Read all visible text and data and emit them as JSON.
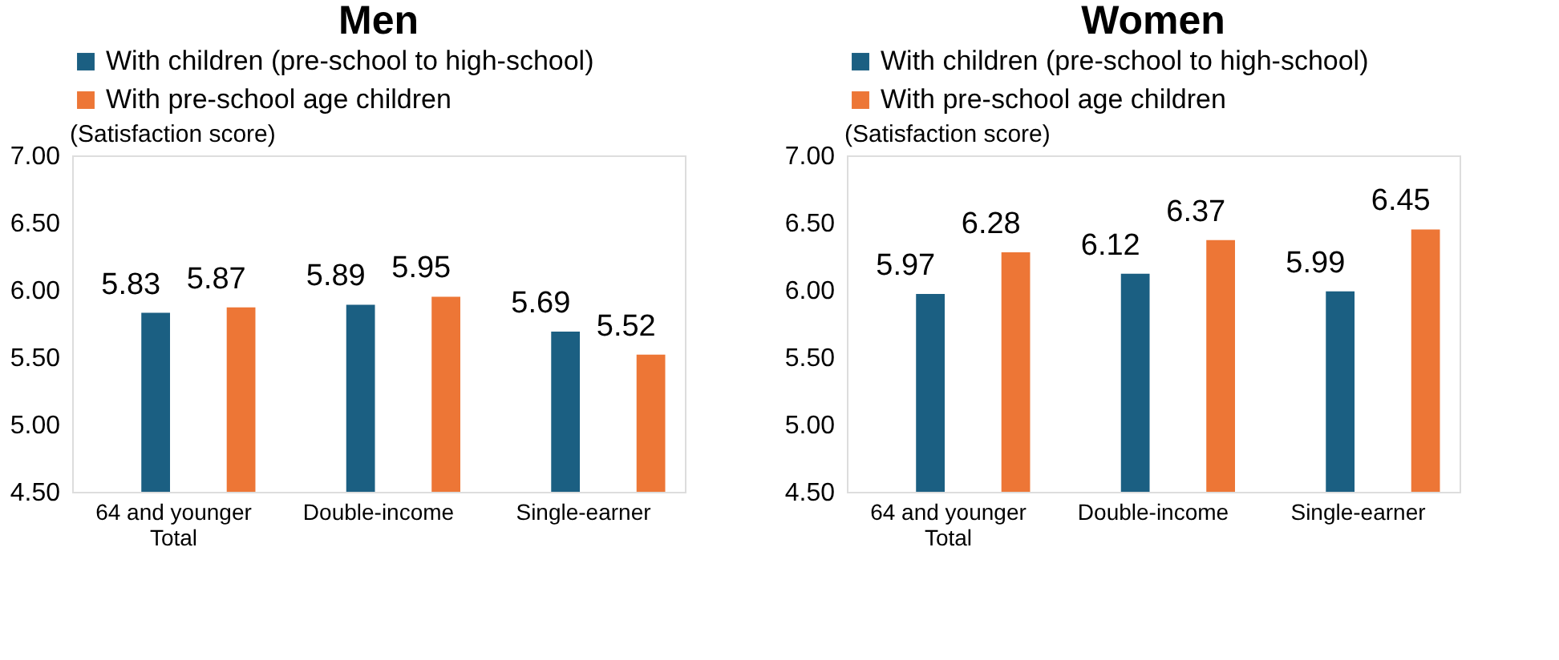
{
  "chart_data": [
    {
      "type": "bar",
      "title": "Men",
      "ylabel": "(Satisfaction score)",
      "categories": [
        "64 and younger\nTotal",
        "Double-income",
        "Single-earner"
      ],
      "series": [
        {
          "name": "With children (pre-school to high-school)",
          "color": "#1b5f82",
          "values": [
            5.83,
            5.89,
            5.69
          ]
        },
        {
          "name": "With pre-school age children",
          "color": "#ed7636",
          "values": [
            5.87,
            5.95,
            5.52
          ]
        }
      ],
      "ylim": [
        4.5,
        7.0
      ],
      "yticks": [
        {
          "value": 4.5,
          "label": "4.50"
        },
        {
          "value": 5.0,
          "label": "5.00"
        },
        {
          "value": 5.5,
          "label": "5.50"
        },
        {
          "value": 6.0,
          "label": "6.00"
        },
        {
          "value": 6.5,
          "label": "6.50"
        },
        {
          "value": 7.0,
          "label": "7.00"
        }
      ],
      "data_labels": true,
      "legend": "top",
      "grid": false
    },
    {
      "type": "bar",
      "title": "Women",
      "ylabel": "(Satisfaction score)",
      "categories": [
        "64 and younger\nTotal",
        "Double-income",
        "Single-earner"
      ],
      "series": [
        {
          "name": "With children (pre-school to high-school)",
          "color": "#1b5f82",
          "values": [
            5.97,
            6.12,
            5.99
          ]
        },
        {
          "name": "With pre-school age children",
          "color": "#ed7636",
          "values": [
            6.28,
            6.37,
            6.45
          ]
        }
      ],
      "ylim": [
        4.5,
        7.0
      ],
      "yticks": [
        {
          "value": 4.5,
          "label": "4.50"
        },
        {
          "value": 5.0,
          "label": "5.00"
        },
        {
          "value": 5.5,
          "label": "5.50"
        },
        {
          "value": 6.0,
          "label": "6.00"
        },
        {
          "value": 6.5,
          "label": "6.50"
        },
        {
          "value": 7.0,
          "label": "7.00"
        }
      ],
      "data_labels": true,
      "legend": "top",
      "grid": false
    }
  ]
}
